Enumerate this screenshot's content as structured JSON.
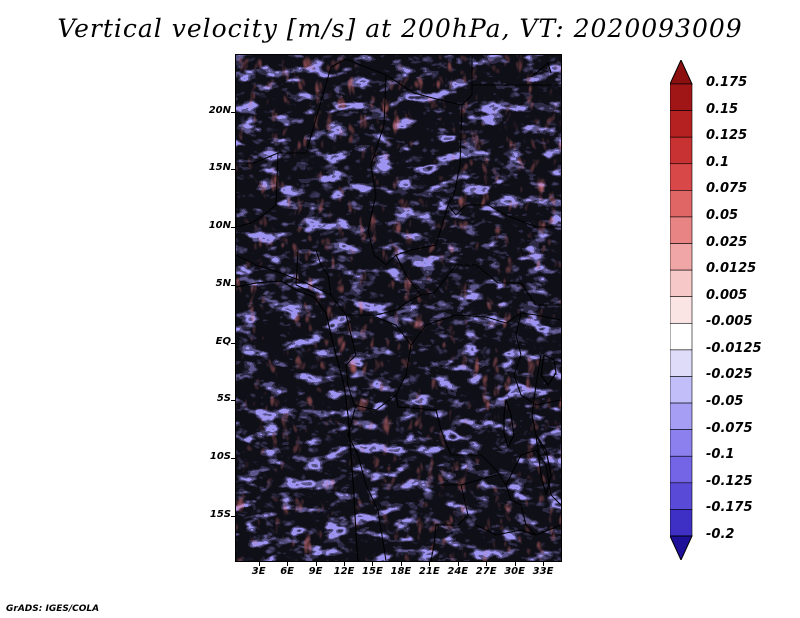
{
  "title": "Vertical velocity [m/s] at 200hPa, VT: 2020093009",
  "credit": "GrADS: IGES/COLA",
  "map": {
    "lat_range": [
      -19,
      25
    ],
    "lon_range": [
      0.5,
      35
    ],
    "lat_ticks": [
      {
        "value": 20,
        "label": "20N"
      },
      {
        "value": 15,
        "label": "15N"
      },
      {
        "value": 10,
        "label": "10N"
      },
      {
        "value": 5,
        "label": "5N"
      },
      {
        "value": 0,
        "label": "EQ"
      },
      {
        "value": -5,
        "label": "5S"
      },
      {
        "value": -10,
        "label": "10S"
      },
      {
        "value": -15,
        "label": "15S"
      }
    ],
    "lon_ticks": [
      {
        "value": 3,
        "label": "3E"
      },
      {
        "value": 6,
        "label": "6E"
      },
      {
        "value": 9,
        "label": "9E"
      },
      {
        "value": 12,
        "label": "12E"
      },
      {
        "value": 15,
        "label": "15E"
      },
      {
        "value": 18,
        "label": "18E"
      },
      {
        "value": 21,
        "label": "21E"
      },
      {
        "value": 24,
        "label": "24E"
      },
      {
        "value": 27,
        "label": "27E"
      },
      {
        "value": 30,
        "label": "30E"
      },
      {
        "value": 33,
        "label": "33E"
      }
    ]
  },
  "colorbar": {
    "levels": [
      {
        "label": "0.175",
        "color": "#a01616"
      },
      {
        "label": "0.15",
        "color": "#b52020"
      },
      {
        "label": "0.125",
        "color": "#c83232"
      },
      {
        "label": "0.1",
        "color": "#d84848"
      },
      {
        "label": "0.075",
        "color": "#e06666"
      },
      {
        "label": "0.05",
        "color": "#e88484"
      },
      {
        "label": "0.025",
        "color": "#f0a6a6"
      },
      {
        "label": "0.0125",
        "color": "#f7c8c8"
      },
      {
        "label": "0.005",
        "color": "#fbe4e4"
      },
      {
        "label": "-0.005",
        "color": "#ffffff"
      },
      {
        "label": "-0.0125",
        "color": "#dedcf8"
      },
      {
        "label": "-0.025",
        "color": "#c2befa"
      },
      {
        "label": "-0.05",
        "color": "#a69ef4"
      },
      {
        "label": "-0.075",
        "color": "#8c80ee"
      },
      {
        "label": "-0.1",
        "color": "#7464e6"
      },
      {
        "label": "-0.125",
        "color": "#5a4ad8"
      },
      {
        "label": "-0.175",
        "color": "#3e30c4"
      },
      {
        "label": "-0.2",
        "color": "#2a1cae"
      }
    ],
    "top_color": "#8c1010",
    "bottom_color": "#1e1098"
  }
}
